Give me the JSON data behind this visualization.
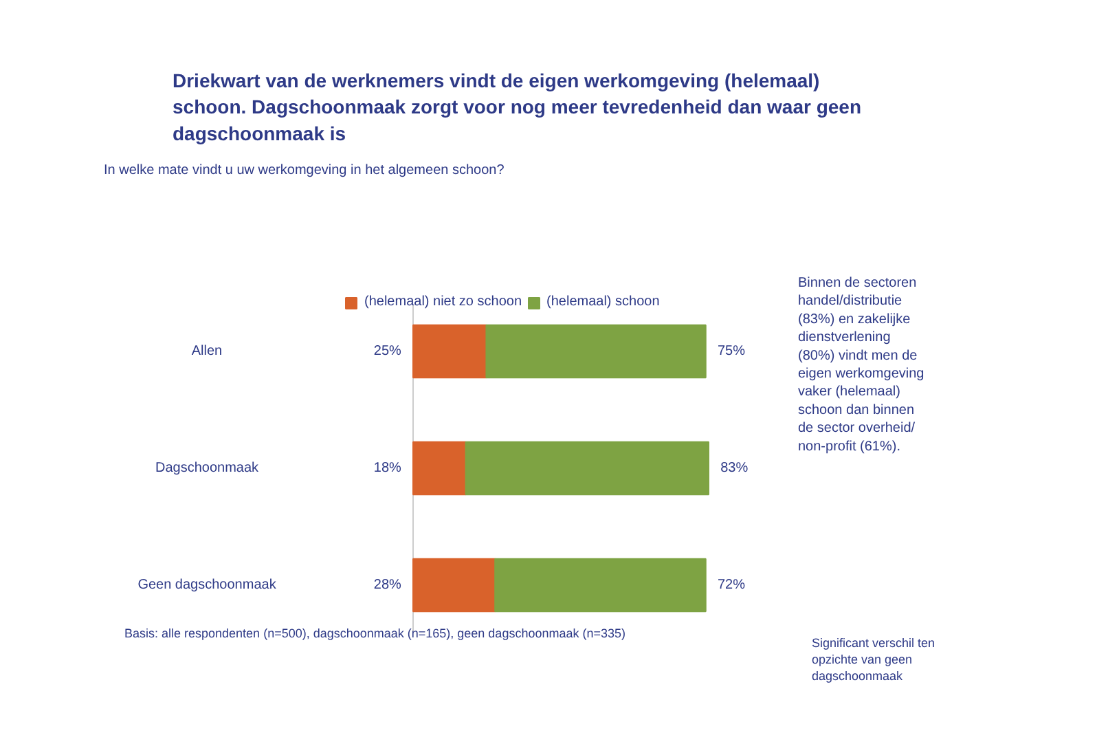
{
  "chart_data": {
    "type": "bar",
    "orientation": "horizontal",
    "stacked": true,
    "title": "Driekwart van de werknemers vindt de eigen werkomgeving (helemaal)\nschoon. Dagschoonmaak zorgt voor nog meer tevredenheid dan waar geen\ndagschoonmaak is",
    "subtitle": "In welke mate vindt u uw werkomgeving in het algemeen schoon?",
    "categories": [
      "Allen",
      "Dagschoonmaak",
      "Geen dagschoonmaak"
    ],
    "series": [
      {
        "name": "(helemaal) niet zo schoon",
        "color": "#d9622b",
        "values": [
          25,
          18,
          28
        ],
        "value_labels": [
          "25%",
          "18%",
          "28%"
        ]
      },
      {
        "name": "(helemaal) schoon",
        "color": "#7ea343",
        "values": [
          75,
          83,
          72
        ],
        "value_labels": [
          "75%",
          "83%",
          "72%"
        ]
      }
    ],
    "legend": "top",
    "annotations": [
      "Binnen de sectoren\nhandel/distributie\n(83%) en zakelijke\ndienstverlening\n(80%) vindt men de\neigen werkomgeving\nvaker (helemaal)\nschoon dan binnen\nde sector overheid/\nnon-profit (61%).",
      "Basis: alle respondenten (n=500), dagschoonmaak (n=165), geen dagschoonmaak (n=335)",
      "Significant verschil ten\nopzichte van geen\ndagschoonmaak"
    ]
  }
}
